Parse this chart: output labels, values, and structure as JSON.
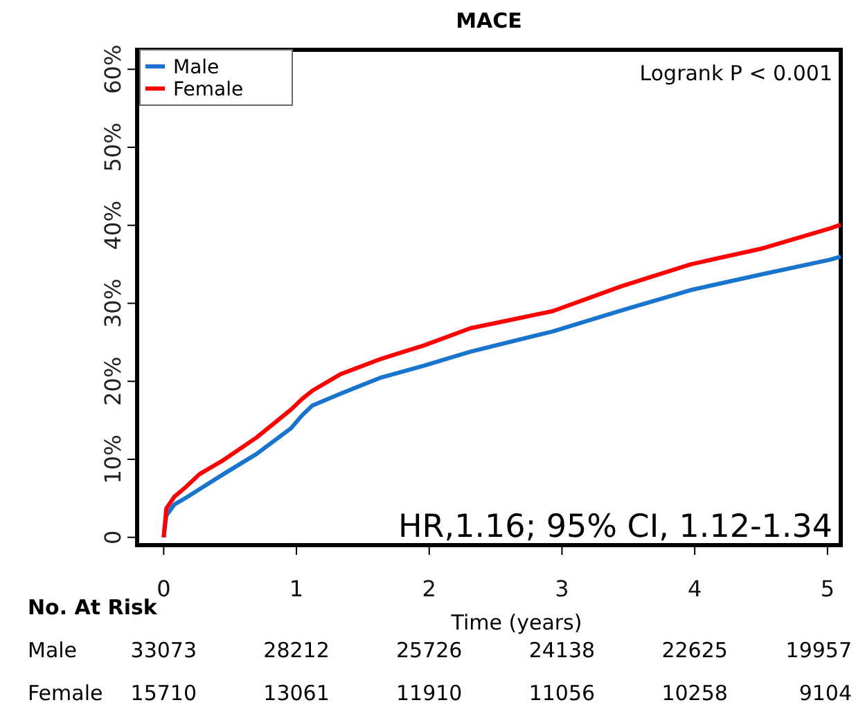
{
  "chart_data": {
    "type": "line",
    "title": "MACE",
    "xlabel": "Time (years)",
    "xlim": [
      -0.2,
      5.1
    ],
    "xticks": [
      0,
      1,
      2,
      3,
      4,
      5
    ],
    "ylim": [
      -1,
      62.5
    ],
    "yticks": [
      0,
      {
        "value": 10,
        "label": "10%"
      },
      {
        "value": 20,
        "label": "20%"
      },
      {
        "value": 30,
        "label": "30%"
      },
      {
        "value": 40,
        "label": "40%"
      },
      {
        "value": 50,
        "label": "50%"
      },
      {
        "value": 60,
        "label": "60%"
      }
    ],
    "grid": false,
    "legend": "top left",
    "marker": "none",
    "line_style": "solid",
    "series": [
      {
        "name": "Male",
        "color": "#1874cd",
        "x": [
          0,
          0.02,
          0.08,
          0.17,
          0.3,
          0.45,
          0.7,
          0.96,
          1.04,
          1.12,
          1.33,
          1.64,
          1.96,
          2.31,
          2.93,
          3.45,
          3.97,
          4.5,
          5.02,
          5.1
        ],
        "values": [
          0,
          2.8,
          4.2,
          5.1,
          6.5,
          8.1,
          10.7,
          14.0,
          15.6,
          16.9,
          18.4,
          20.5,
          22.0,
          23.8,
          26.4,
          29.1,
          31.7,
          33.7,
          35.6,
          36
        ]
      },
      {
        "name": "Female",
        "color": "#ff0000",
        "x": [
          0,
          0.02,
          0.08,
          0.17,
          0.27,
          0.45,
          0.7,
          0.96,
          1.04,
          1.12,
          1.33,
          1.64,
          1.96,
          2.31,
          2.93,
          3.45,
          3.97,
          4.5,
          5.02,
          5.1
        ],
        "values": [
          0,
          3.7,
          5.2,
          6.5,
          8.1,
          9.9,
          12.8,
          16.4,
          17.7,
          18.8,
          20.9,
          22.9,
          24.6,
          26.8,
          29.0,
          32.2,
          35.0,
          37.0,
          39.6,
          40.1
        ]
      }
    ],
    "annotations": [
      "Logrank P < 0.001",
      "HR,1.16; 95% CI, 1.12-1.34",
      "No. At Risk",
      "Male",
      "33073",
      "28212",
      "25726",
      "24138",
      "22625",
      "19957",
      "Female",
      "15710",
      "13061",
      "11910",
      "11056",
      "10258",
      "9104"
    ]
  }
}
